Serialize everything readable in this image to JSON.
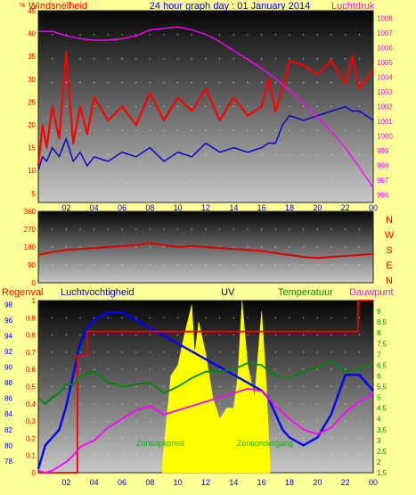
{
  "header": {
    "left_label": "Windsnelheid",
    "title": "24 hour graph day : 01 January 2014",
    "right_label": "Luchtdruk",
    "left_unit_mark": "%"
  },
  "labels": {
    "regenval": "Regenval",
    "luchtvochtigheid": "Luchtvochtigheid",
    "uv": "UV",
    "temperatuur": "Temperatuur",
    "dauwpunt": "Dauwpunt",
    "zonsopkomst": "Zonsopkomst",
    "zonsondergang": "Zonsondergang"
  },
  "colors": {
    "page_bg": "#ffff99",
    "wind_gust": "#ff0000",
    "wind_avg": "#0000cc",
    "pressure": "#ff00ff",
    "direction": "#dd0000",
    "humidity": "#0000ff",
    "rain": "#ee0000",
    "uv": "#ffff00",
    "temperature": "#008800",
    "dewpoint": "#ff00ff",
    "green_label": "#008800"
  },
  "chart_data": [
    {
      "type": "line",
      "name": "top",
      "x_ticks": [
        "02",
        "04",
        "06",
        "08",
        "10",
        "12",
        "14",
        "16",
        "18",
        "20",
        "22",
        "00"
      ],
      "y_left_ticks": [
        "45",
        "40",
        "35",
        "30",
        "25",
        "20",
        "15",
        "10",
        "5"
      ],
      "y_left_range": [
        3,
        45
      ],
      "y_right_ticks": [
        "1008",
        "1007",
        "1006",
        "1005",
        "1004",
        "1003",
        "1002",
        "1001",
        "1000",
        "999",
        "998",
        "997",
        "996"
      ],
      "y_right_range": [
        995.5,
        1008.5
      ],
      "series": [
        {
          "color": "wind_gust",
          "axis": "left",
          "x": [
            0,
            0.3,
            0.6,
            1,
            1.5,
            2,
            2.5,
            3,
            3.5,
            4,
            5,
            6,
            7,
            8,
            9,
            10,
            11,
            12,
            13,
            14,
            15,
            16,
            16.5,
            17,
            17.5,
            18,
            19,
            20,
            21,
            22,
            22.5,
            23,
            23.5,
            24
          ],
          "y": [
            11,
            20,
            15,
            24,
            17,
            36,
            16,
            24,
            18,
            26,
            21,
            24,
            20,
            27,
            21,
            26,
            23,
            28,
            21,
            26,
            22,
            24,
            30,
            23,
            28,
            34,
            33,
            31,
            34,
            29,
            35,
            28,
            30,
            32
          ]
        },
        {
          "color": "wind_avg",
          "axis": "left",
          "x": [
            0,
            0.3,
            0.6,
            1,
            1.5,
            2,
            2.5,
            3,
            3.5,
            4,
            5,
            6,
            7,
            8,
            9,
            10,
            11,
            12,
            13,
            14,
            15,
            16,
            16.5,
            17,
            17.5,
            18,
            19,
            20,
            21,
            22,
            22.5,
            23,
            23.5,
            24
          ],
          "y": [
            10,
            13,
            12,
            15,
            13,
            17,
            12,
            14,
            11,
            13,
            12,
            14,
            13,
            15,
            12,
            14,
            13,
            16,
            14,
            15,
            14,
            15,
            16,
            16,
            20,
            22,
            21,
            22,
            23,
            24,
            23,
            23,
            22,
            21
          ]
        },
        {
          "color": "pressure",
          "axis": "right",
          "x": [
            0,
            1,
            2,
            3,
            4,
            5,
            6,
            7,
            7.5,
            8,
            9,
            10,
            11,
            12,
            13,
            14,
            15,
            16,
            17,
            18,
            19,
            20,
            21,
            22,
            23,
            24
          ],
          "y": [
            1007.1,
            1007.1,
            1006.8,
            1006.6,
            1006.5,
            1006.5,
            1006.6,
            1006.8,
            1007.0,
            1007.2,
            1007.3,
            1007.4,
            1007.2,
            1006.9,
            1006.4,
            1005.8,
            1005.2,
            1004.6,
            1003.9,
            1003.1,
            1002.2,
            1001.3,
            1000.3,
            999.2,
            997.9,
            996.5
          ]
        }
      ]
    },
    {
      "type": "line",
      "name": "wind-direction",
      "y_ticks": [
        "360",
        "270",
        "180",
        "90",
        "0"
      ],
      "y_range": [
        0,
        360
      ],
      "direction_labels": [
        "N",
        "W",
        "S",
        "E",
        "N"
      ],
      "series": [
        {
          "color": "direction",
          "x": [
            0,
            1,
            2,
            3,
            4,
            5,
            6,
            7,
            8,
            9,
            10,
            11,
            12,
            13,
            14,
            15,
            16,
            17,
            18,
            19,
            20,
            21,
            22,
            23,
            24
          ],
          "y": [
            140,
            155,
            165,
            170,
            175,
            180,
            185,
            190,
            200,
            190,
            180,
            185,
            180,
            175,
            170,
            165,
            160,
            150,
            140,
            130,
            125,
            130,
            135,
            140,
            145
          ]
        }
      ]
    },
    {
      "type": "line",
      "name": "bottom",
      "y_left1_ticks": [
        "98",
        "96",
        "94",
        "92",
        "90",
        "88",
        "86",
        "84",
        "82",
        "80",
        "78"
      ],
      "y_left1_range": [
        76.5,
        98.5
      ],
      "y_left2_ticks": [
        "1",
        "0.9",
        "0.8",
        "0.7",
        "0.6",
        "0.5",
        "0.4",
        "0.3",
        "0.2",
        "0.1",
        "0"
      ],
      "y_left2_range": [
        0,
        1
      ],
      "y_right_ticks": [
        "9",
        "8.5",
        "8",
        "7.5",
        "7",
        "6.5",
        "6",
        "5.5",
        "5",
        "4.5",
        "4",
        "3.5",
        "3",
        "2.5",
        "2",
        "1.5"
      ],
      "y_right_range": [
        1.5,
        9.5
      ],
      "uv_window": [
        8.9,
        16.6
      ],
      "series": [
        {
          "color": "humidity",
          "axis": "left1",
          "x": [
            0,
            0.5,
            1,
            1.5,
            2,
            2.5,
            3,
            3.5,
            4,
            5,
            6,
            7,
            8,
            9,
            10,
            11,
            12,
            13,
            14,
            15,
            16,
            16.5,
            17,
            17.5,
            18,
            19,
            20,
            21,
            22,
            23,
            24
          ],
          "y": [
            77,
            80,
            81,
            82,
            85,
            89,
            93,
            95,
            96,
            97,
            97,
            96,
            95,
            94,
            93,
            92,
            91,
            90,
            89,
            88,
            87,
            86,
            84,
            82,
            81,
            80,
            81,
            84,
            89,
            89,
            87
          ]
        },
        {
          "color": "rain",
          "axis": "left2",
          "x": [
            0,
            2.7,
            2.8,
            3.4,
            3.5,
            8,
            11,
            12,
            20,
            22.8,
            22.9,
            24
          ],
          "y": [
            0,
            0,
            0.68,
            0.68,
            0.82,
            0.82,
            0.82,
            0.82,
            0.82,
            0.82,
            1,
            1
          ]
        },
        {
          "color": "temperature",
          "axis": "right",
          "x": [
            0,
            0.5,
            1,
            1.5,
            2,
            2.5,
            3,
            4,
            5,
            6,
            7,
            8,
            9,
            10,
            11,
            12,
            13,
            14,
            15,
            16,
            17,
            18,
            19,
            20,
            21,
            22,
            23,
            24
          ],
          "y": [
            5.0,
            4.7,
            5.0,
            5.2,
            5.6,
            5.6,
            6.0,
            6.2,
            5.7,
            5.5,
            5.6,
            5.7,
            5.2,
            5.5,
            5.9,
            6.2,
            6.2,
            6.3,
            6.6,
            6.5,
            6.0,
            5.9,
            6.2,
            6.4,
            6.7,
            6.2,
            6.3,
            6.6
          ]
        },
        {
          "color": "dewpoint",
          "axis": "right",
          "x": [
            0,
            0.5,
            1,
            1.5,
            2,
            2.5,
            3,
            4,
            5,
            6,
            7,
            8,
            9,
            10,
            11,
            12,
            13,
            14,
            15,
            16,
            17,
            18,
            19,
            20,
            21,
            22,
            23,
            24
          ],
          "y": [
            1.6,
            1.5,
            1.6,
            1.8,
            2.0,
            2.3,
            2.7,
            3.0,
            3.6,
            4.0,
            4.4,
            4.6,
            4.2,
            4.4,
            4.6,
            4.8,
            5.0,
            5.2,
            5.4,
            5.3,
            4.6,
            4.0,
            3.5,
            3.3,
            3.6,
            4.3,
            4.8,
            5.2
          ]
        },
        {
          "color": "uv",
          "axis": "right",
          "fill": true,
          "x": [
            8.9,
            9.5,
            10,
            10.5,
            11,
            11.2,
            11.5,
            12,
            12.5,
            13,
            13.5,
            14,
            14.3,
            14.6,
            15,
            15.5,
            16,
            16.3,
            16.6
          ],
          "y": [
            2.0,
            6.0,
            6.5,
            8.0,
            9.3,
            7.0,
            8.5,
            7.0,
            5.0,
            4.0,
            4.5,
            4.5,
            6.0,
            9.5,
            6.5,
            5.0,
            9.0,
            6.0,
            2.0
          ]
        }
      ]
    }
  ]
}
